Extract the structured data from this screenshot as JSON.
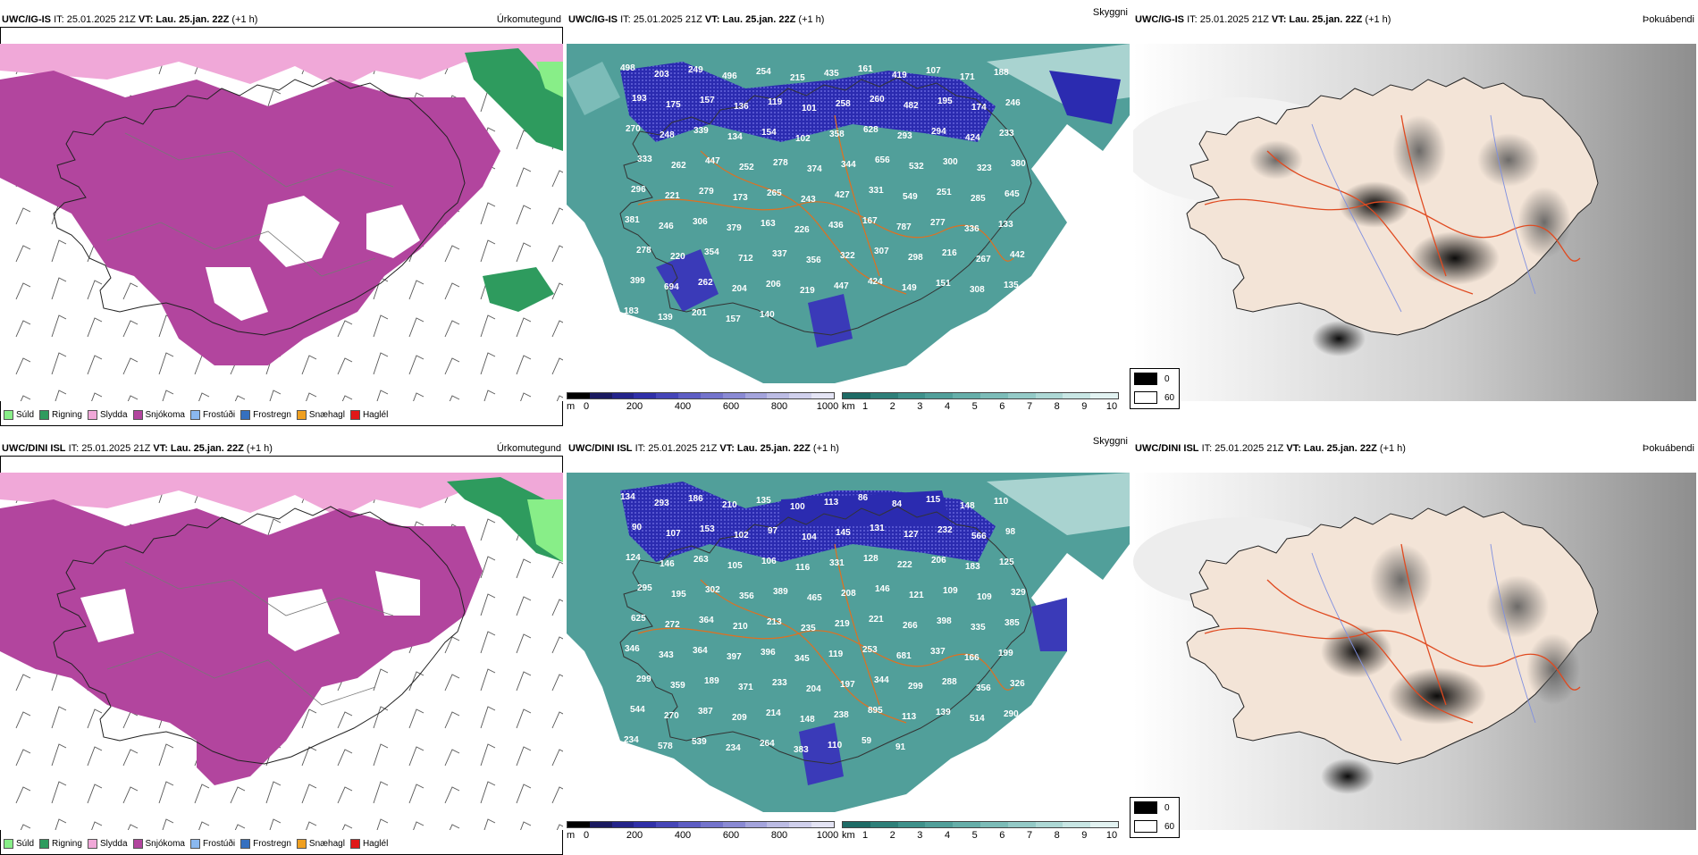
{
  "rows": [
    {
      "model": "UWC/IG-IS",
      "it_text": "IT: 25.01.2025 21Z",
      "vt_label": "VT:",
      "vt_value": "Lau. 25.jan. 22Z",
      "lead": "(+1 h)",
      "vis_labels": [
        "498",
        "203",
        "249",
        "496",
        "254",
        "215",
        "435",
        "161",
        "419",
        "107",
        "171",
        "188",
        "193",
        "175",
        "157",
        "136",
        "119",
        "101",
        "258",
        "260",
        "482",
        "195",
        "174",
        "246",
        "270",
        "248",
        "339",
        "134",
        "154",
        "102",
        "358",
        "628",
        "293",
        "294",
        "424",
        "233",
        "333",
        "262",
        "447",
        "252",
        "278",
        "374",
        "344",
        "656",
        "532",
        "300",
        "323",
        "380",
        "296",
        "221",
        "279",
        "173",
        "265",
        "243",
        "427",
        "331",
        "549",
        "251",
        "285",
        "645",
        "381",
        "246",
        "306",
        "379",
        "163",
        "226",
        "436",
        "167",
        "787",
        "277",
        "336",
        "133",
        "278",
        "220",
        "354",
        "712",
        "337",
        "356",
        "322",
        "307",
        "298",
        "216",
        "267",
        "442",
        "399",
        "694",
        "262",
        "204",
        "206",
        "219",
        "447",
        "424",
        "149",
        "151",
        "308",
        "135",
        "183",
        "139",
        "201",
        "157",
        "140"
      ]
    },
    {
      "model": "UWC/DINI ISL",
      "it_text": "IT: 25.01.2025 21Z",
      "vt_label": "VT:",
      "vt_value": "Lau. 25.jan. 22Z",
      "lead": "(+1 h)",
      "vis_labels": [
        "134",
        "293",
        "186",
        "210",
        "135",
        "100",
        "113",
        "86",
        "84",
        "115",
        "148",
        "110",
        "90",
        "107",
        "153",
        "102",
        "97",
        "104",
        "145",
        "131",
        "127",
        "232",
        "566",
        "98",
        "124",
        "146",
        "263",
        "105",
        "106",
        "116",
        "331",
        "128",
        "222",
        "206",
        "183",
        "125",
        "295",
        "195",
        "302",
        "356",
        "389",
        "465",
        "208",
        "146",
        "121",
        "109",
        "109",
        "329",
        "625",
        "272",
        "364",
        "210",
        "213",
        "235",
        "219",
        "221",
        "266",
        "398",
        "335",
        "385",
        "346",
        "343",
        "364",
        "397",
        "396",
        "345",
        "119",
        "253",
        "681",
        "337",
        "166",
        "199",
        "299",
        "359",
        "189",
        "371",
        "233",
        "204",
        "197",
        "344",
        "299",
        "288",
        "356",
        "326",
        "544",
        "270",
        "387",
        "209",
        "214",
        "148",
        "238",
        "895",
        "113",
        "139",
        "514",
        "290",
        "234",
        "578",
        "539",
        "234",
        "264",
        "383",
        "110",
        "59",
        "91"
      ]
    }
  ],
  "panel_names": {
    "precip": "Úrkomutegund",
    "visibility": "Skyggni",
    "fog": "Þokuábendi"
  },
  "precip_legend": [
    {
      "label": "Súld",
      "color": "#88ee88"
    },
    {
      "label": "Rigning",
      "color": "#2e9b5e"
    },
    {
      "label": "Slydda",
      "color": "#f0a8d8"
    },
    {
      "label": "Snjókoma",
      "color": "#b2459e"
    },
    {
      "label": "Frostúði",
      "color": "#8ab8f0"
    },
    {
      "label": "Frostregn",
      "color": "#3570c0"
    },
    {
      "label": "Snæhagl",
      "color": "#f0a020"
    },
    {
      "label": "Haglél",
      "color": "#e01818"
    }
  ],
  "ceiling_bar": {
    "unit": "m",
    "ticks": [
      "0",
      "200",
      "400",
      "600",
      "800",
      "1000"
    ],
    "colors": [
      "#000000",
      "#1a1a60",
      "#24248a",
      "#3030a8",
      "#4646b8",
      "#5e5ec4",
      "#7474cc",
      "#8a8ad4",
      "#a4a4dc",
      "#bcbce4",
      "#d0d0ec",
      "#e4e4f4"
    ]
  },
  "vis_bar": {
    "unit": "km",
    "ticks": [
      "1",
      "2",
      "3",
      "4",
      "5",
      "6",
      "7",
      "8",
      "9",
      "10"
    ],
    "colors": [
      "#1e6b66",
      "#2e7f79",
      "#3f918b",
      "#519f9a",
      "#66aea9",
      "#7cbcb8",
      "#94cac7",
      "#add8d5",
      "#c8e6e4",
      "#e2f2f1"
    ]
  },
  "fog_legend": {
    "values": [
      "0",
      "60"
    ],
    "colors": [
      "#000000",
      "#ffffff"
    ]
  }
}
